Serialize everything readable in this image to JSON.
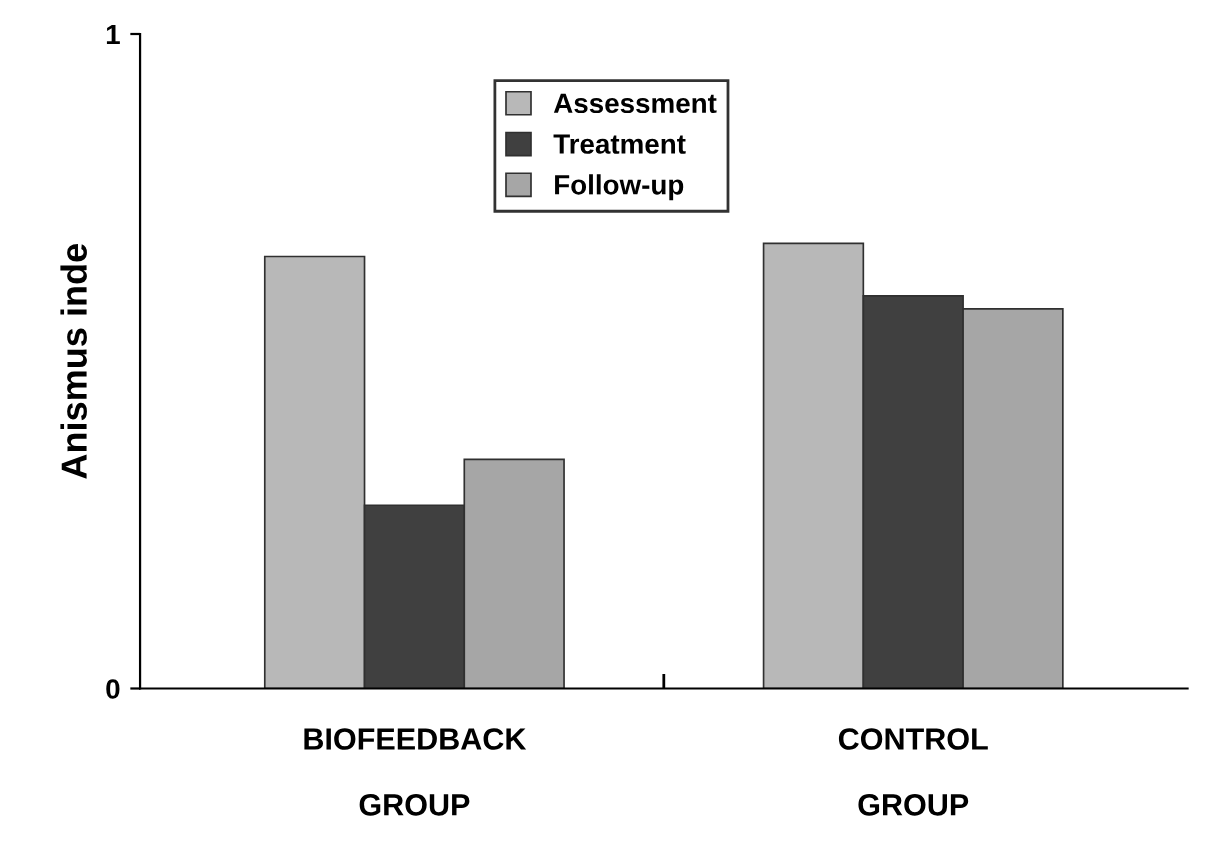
{
  "chart_data": {
    "type": "bar",
    "ylabel": "Anismus inde",
    "categories": [
      "BIOFEEDBACK\n\nGROUP",
      "CONTROL\n\nGROUP"
    ],
    "series": [
      {
        "name": "Assessment",
        "color": "#b8b8b8",
        "values": [
          0.66,
          0.68
        ]
      },
      {
        "name": "Treatment",
        "color": "#404040",
        "values": [
          0.28,
          0.6
        ]
      },
      {
        "name": "Follow-up",
        "color": "#a6a6a6",
        "values": [
          0.35,
          0.58
        ]
      }
    ],
    "ylim": [
      0,
      1
    ],
    "yticks": [
      0,
      1
    ],
    "grid": false,
    "legend": "top"
  }
}
